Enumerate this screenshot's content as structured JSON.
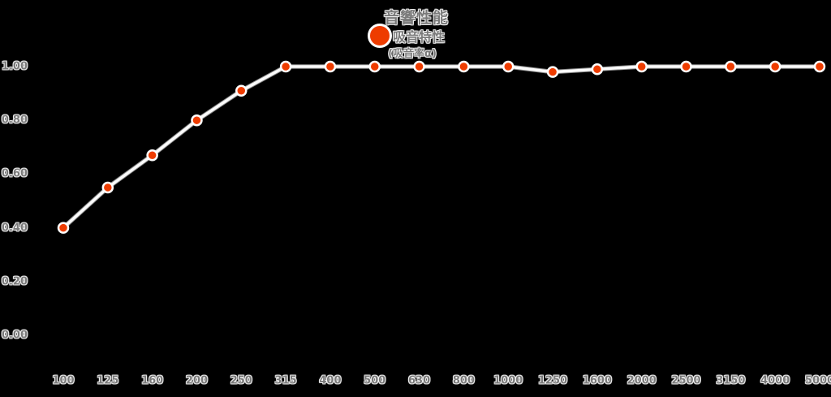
{
  "chart_data": {
    "type": "line",
    "title": "音響性能",
    "legend": {
      "series_label": "吸音特性",
      "series_sublabel": "(吸音率α)",
      "position": "top-center"
    },
    "categories": [
      "100",
      "125",
      "160",
      "200",
      "250",
      "315",
      "400",
      "500",
      "630",
      "800",
      "1000",
      "1250",
      "1600",
      "2000",
      "2500",
      "3150",
      "4000",
      "5000"
    ],
    "xlabel": "",
    "ylabel": "",
    "series": [
      {
        "name": "吸音特性",
        "values": [
          0.4,
          0.55,
          0.67,
          0.8,
          0.91,
          1.0,
          1.0,
          1.0,
          1.0,
          1.0,
          1.0,
          0.98,
          0.99,
          1.0,
          1.0,
          1.0,
          1.0,
          1.0
        ]
      }
    ],
    "ylim": [
      0.0,
      1.0
    ],
    "yticks": [
      "0.00",
      "0.20",
      "0.40",
      "0.60",
      "0.80",
      "1.00"
    ],
    "grid": false,
    "axis_lines": false,
    "colors": {
      "marker": "#ee3c00",
      "line": "#fbfbfb",
      "line_halo": "#c9c9c9",
      "text": "#7a7a7a",
      "text_halo": "#ffffff",
      "background": "#000000"
    }
  }
}
